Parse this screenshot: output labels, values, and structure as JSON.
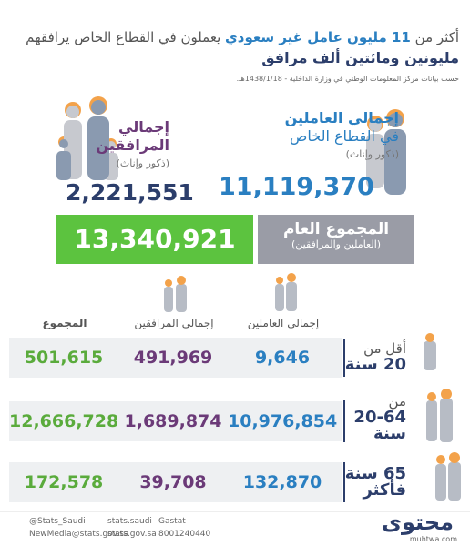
{
  "header": {
    "line1_pre": "أكثر من",
    "line1_highlight": "11 مليون عامل غير سعودي",
    "line1_post": "يعملون في القطاع الخاص يرافقهم",
    "line2": "مليونين ومائتين ألف مرافق",
    "source": "حسب بيانات مركز المعلومات الوطني في وزارة الداخلية - 1438/1/18هـ."
  },
  "workers": {
    "title1": "إجمالي العاملين",
    "title2": "في القطاع الخاص",
    "note": "(ذكور وإناث)",
    "value": "11,119,370"
  },
  "companions": {
    "title1": "إجمالي",
    "title2": "المرافقين",
    "note": "(ذكور وإناث)",
    "value": "2,221,551"
  },
  "total": {
    "title": "المجموع العام",
    "note": "(العاملين والمرافقين)",
    "value": "13,340,921"
  },
  "table": {
    "headers": [
      "إجمالي العاملين",
      "إجمالي المرافقين",
      "المجموع"
    ],
    "rows": [
      {
        "age1": "أقل من",
        "age2": "20 سنة",
        "cells": [
          "9,646",
          "491,969",
          "501,615"
        ]
      },
      {
        "age1": "من",
        "age2": "20-64",
        "age3": "سنة",
        "cells": [
          "10,976,854",
          "1,689,874",
          "12,666,728"
        ]
      },
      {
        "age1": "65 سنة",
        "age2": "فأكثر",
        "cells": [
          "132,870",
          "39,708",
          "172,578"
        ]
      }
    ]
  },
  "footer": {
    "twitter": "@Stats_Saudi",
    "instagram": "stats.saudi",
    "facebook": "Gastat",
    "email": "NewMedia@stats.gov.sa",
    "web": "stats.gov.sa",
    "phone": "8001240440",
    "logo": "محتوى",
    "site": "muhtwa.com"
  }
}
